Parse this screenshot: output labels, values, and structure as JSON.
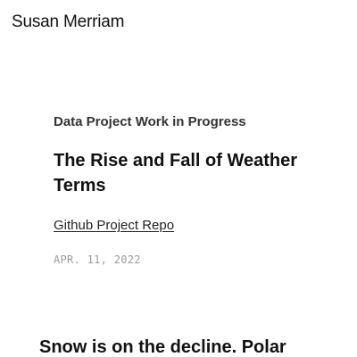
{
  "site": {
    "title": "Susan Merriam"
  },
  "post": {
    "category": "Data Project Work in Progress",
    "title": "The Rise and Fall of Weather Terms",
    "repo_link": "Github Project Repo",
    "date": "APR. 11, 2022"
  },
  "content": {
    "heading": "Snow is on the decline. Polar"
  }
}
